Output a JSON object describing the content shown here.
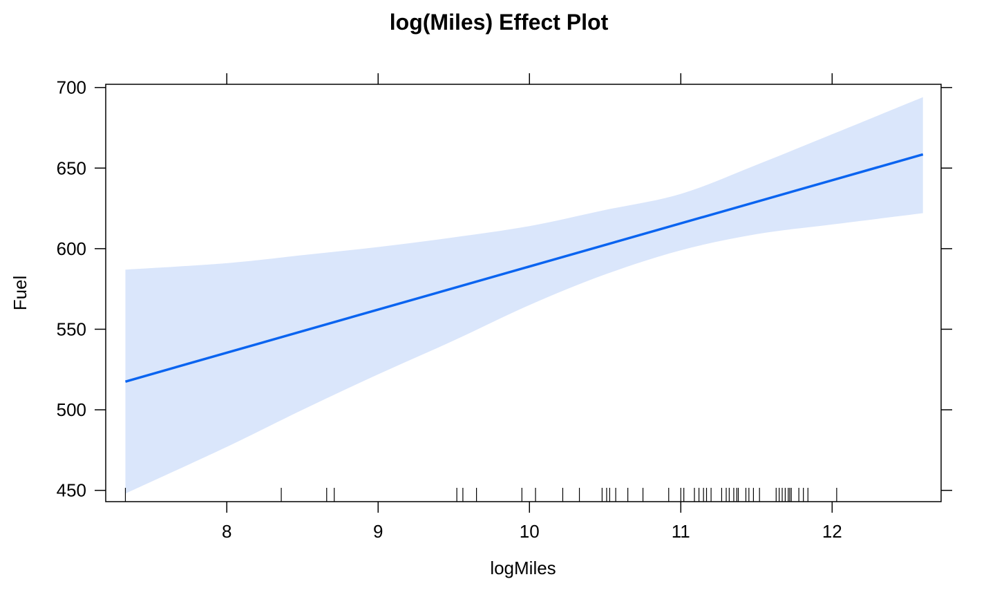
{
  "chart_data": {
    "type": "line",
    "title": "log(Miles) Effect Plot",
    "xlabel": "logMiles",
    "ylabel": "Fuel",
    "xlim": [
      7.2,
      12.72
    ],
    "ylim": [
      443,
      702
    ],
    "x_ticks": [
      8,
      9,
      10,
      11,
      12
    ],
    "y_ticks": [
      450,
      500,
      550,
      600,
      650,
      700
    ],
    "x_tick_labels": [
      "8",
      "9",
      "10",
      "11",
      "12"
    ],
    "y_tick_labels": [
      "450",
      "500",
      "550",
      "600",
      "650",
      "700"
    ],
    "grid": false,
    "colors": {
      "line": "#0a64f0",
      "band": "#dae6fb",
      "axes": "#000000"
    },
    "series": [
      {
        "x": [
          7.33,
          12.6
        ],
        "y": [
          517.5,
          658.5
        ]
      }
    ],
    "confidence_band": {
      "x": [
        7.33,
        8.0,
        8.5,
        9.0,
        9.5,
        10.0,
        10.5,
        11.0,
        11.5,
        12.0,
        12.6
      ],
      "lower": [
        448,
        477,
        500,
        522,
        543,
        565,
        584,
        599,
        609,
        615,
        622
      ],
      "upper": [
        587,
        591,
        596,
        601,
        607,
        614,
        624,
        634,
        652,
        671,
        694
      ]
    },
    "rug": [
      7.33,
      8.36,
      8.66,
      8.71,
      9.52,
      9.56,
      9.65,
      9.95,
      10.04,
      10.22,
      10.33,
      10.48,
      10.51,
      10.53,
      10.57,
      10.65,
      10.75,
      10.92,
      11.0,
      11.02,
      11.09,
      11.12,
      11.15,
      11.17,
      11.2,
      11.27,
      11.3,
      11.32,
      11.35,
      11.37,
      11.38,
      11.43,
      11.45,
      11.48,
      11.52,
      11.63,
      11.65,
      11.67,
      11.69,
      11.71,
      11.72,
      11.73,
      11.78,
      11.81,
      11.84,
      12.03
    ]
  }
}
